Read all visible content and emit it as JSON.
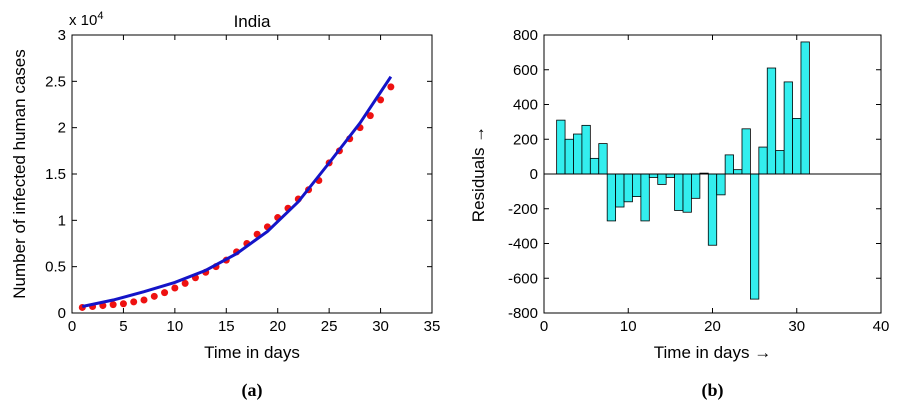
{
  "chart_data": [
    {
      "type": "line",
      "title": "India",
      "xlabel": "Time in days",
      "ylabel": "Number of infected human cases",
      "multiplier": "x 10",
      "multiplier_exp": "4",
      "caption": "(a)",
      "xlim": [
        0,
        35
      ],
      "xticks": [
        0,
        5,
        10,
        15,
        20,
        25,
        30,
        35
      ],
      "ylim": [
        0,
        3
      ],
      "yticks": [
        0,
        0.5,
        1,
        1.5,
        2,
        2.5,
        3
      ],
      "series": [
        {
          "style": "markers",
          "color": "#ee1111",
          "x": [
            1,
            2,
            3,
            4,
            5,
            6,
            7,
            8,
            9,
            10,
            11,
            12,
            13,
            14,
            15,
            16,
            17,
            18,
            19,
            20,
            21,
            22,
            23,
            24,
            25,
            26,
            27,
            28,
            29,
            30,
            31
          ],
          "values": [
            0.06,
            0.07,
            0.08,
            0.09,
            0.1,
            0.12,
            0.14,
            0.18,
            0.22,
            0.27,
            0.32,
            0.38,
            0.44,
            0.5,
            0.57,
            0.66,
            0.75,
            0.85,
            0.93,
            1.03,
            1.13,
            1.23,
            1.33,
            1.43,
            1.62,
            1.75,
            1.88,
            2.0,
            2.13,
            2.3,
            2.44
          ]
        },
        {
          "style": "line",
          "color": "#1414c8",
          "x": [
            1,
            4,
            7,
            10,
            13,
            16,
            19,
            22,
            25,
            28,
            31
          ],
          "values": [
            0.07,
            0.14,
            0.23,
            0.33,
            0.46,
            0.64,
            0.88,
            1.2,
            1.62,
            2.05,
            2.55
          ]
        }
      ]
    },
    {
      "type": "bar",
      "xlabel": "Time in days →",
      "ylabel": "Residuals →",
      "caption": "(b)",
      "xlim": [
        0,
        40
      ],
      "xticks": [
        0,
        10,
        20,
        30,
        40
      ],
      "ylim": [
        -800,
        800
      ],
      "yticks": [
        -800,
        -600,
        -400,
        -200,
        0,
        200,
        400,
        600,
        800
      ],
      "color": "#33eeee",
      "x": [
        2,
        3,
        4,
        5,
        6,
        7,
        8,
        9,
        10,
        11,
        12,
        13,
        14,
        15,
        16,
        17,
        18,
        19,
        20,
        21,
        22,
        23,
        24,
        25,
        26,
        27,
        28,
        29,
        30,
        31
      ],
      "values": [
        310,
        200,
        230,
        280,
        90,
        175,
        -270,
        -190,
        -160,
        -130,
        -270,
        -20,
        -60,
        -20,
        -210,
        -220,
        -140,
        5,
        -410,
        -120,
        110,
        25,
        260,
        -720,
        155,
        610,
        135,
        530,
        320,
        760
      ]
    }
  ]
}
